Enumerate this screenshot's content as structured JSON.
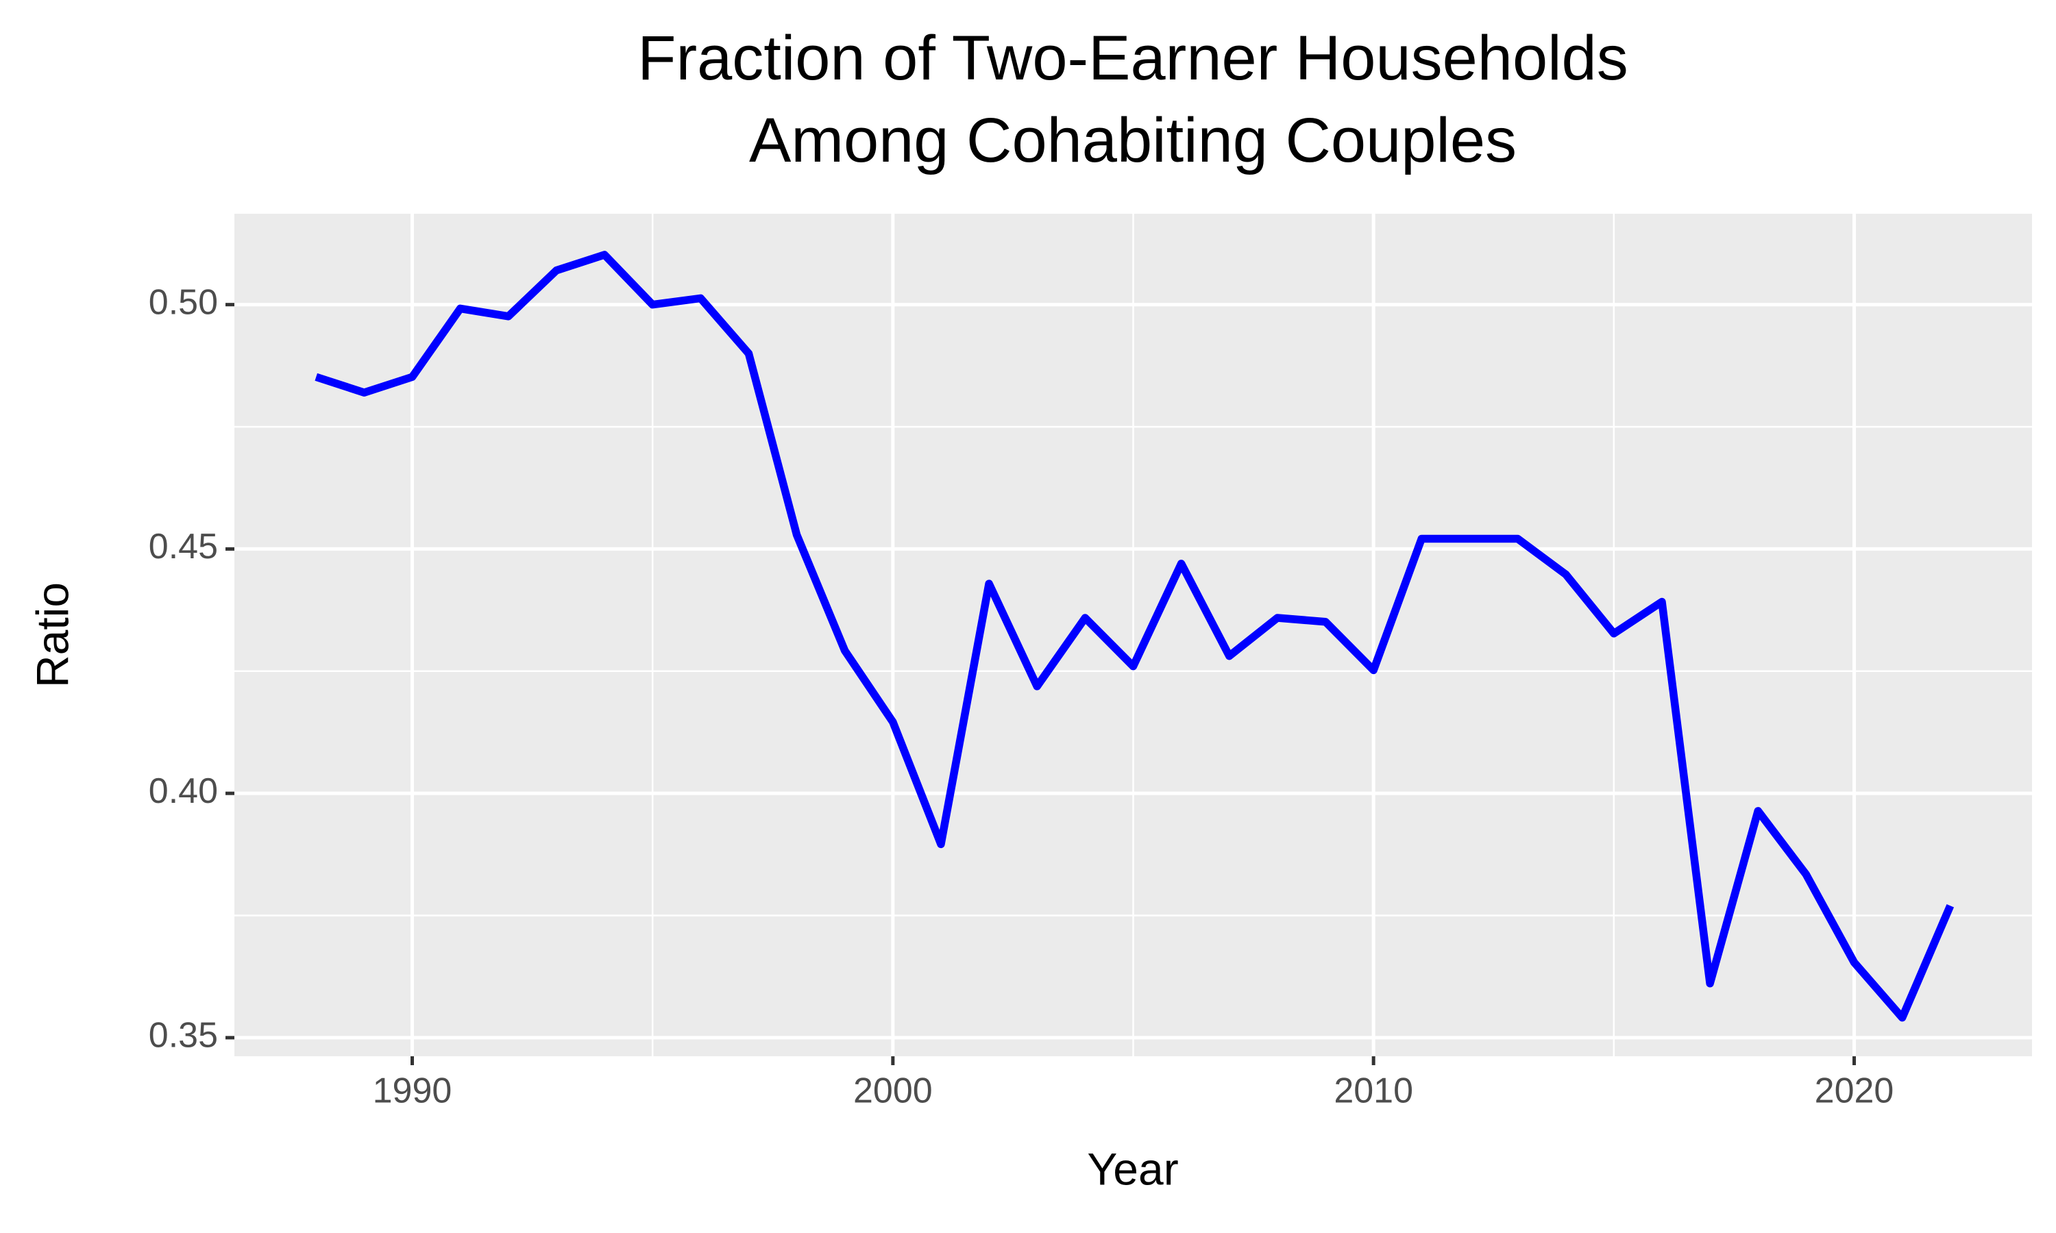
{
  "chart_data": {
    "type": "line",
    "title": "Fraction of Two-Earner Households\nAmong Cohabiting Couples",
    "x_label": "Year",
    "y_label": "Ratio",
    "x": [
      1988,
      1989,
      1990,
      1991,
      1992,
      1993,
      1994,
      1995,
      1996,
      1997,
      1998,
      1999,
      2000,
      2001,
      2002,
      2003,
      2004,
      2005,
      2006,
      2007,
      2008,
      2009,
      2010,
      2011,
      2012,
      2013,
      2014,
      2015,
      2016,
      2017,
      2018,
      2019,
      2020,
      2021,
      2022
    ],
    "series": [
      {
        "color": "#0000ff",
        "values": [
          0.4852,
          0.482,
          0.4852,
          0.4992,
          0.4976,
          0.507,
          0.5102,
          0.5,
          0.5013,
          0.49,
          0.4529,
          0.4292,
          0.4146,
          0.3896,
          0.4429,
          0.4219,
          0.4359,
          0.426,
          0.447,
          0.4281,
          0.4359,
          0.4351,
          0.4252,
          0.4521,
          0.4521,
          0.4521,
          0.4448,
          0.4327,
          0.4392,
          0.3611,
          0.3964,
          0.3834,
          0.3654,
          0.3541,
          0.377
        ]
      }
    ],
    "xlim": [
      1986.3,
      2023.7
    ],
    "ylim": [
      0.3462,
      0.5186
    ],
    "xticks": [
      1990,
      2000,
      2010,
      2020
    ],
    "yticks": [
      {
        "value": 0.35,
        "label": "0.35"
      },
      {
        "value": 0.4,
        "label": "0.40"
      },
      {
        "value": 0.45,
        "label": "0.45"
      },
      {
        "value": 0.5,
        "label": "0.50"
      }
    ],
    "xminor": [
      1995,
      2005,
      2015
    ],
    "yminor": [
      0.375,
      0.425,
      0.475
    ],
    "grid": true
  }
}
